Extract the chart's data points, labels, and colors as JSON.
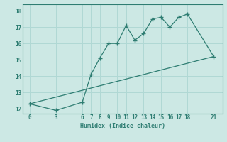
{
  "xlabel": "Humidex (Indice chaleur)",
  "bg_color": "#cce8e4",
  "grid_color": "#b0d8d4",
  "line_color": "#2e7d72",
  "xticks": [
    0,
    3,
    6,
    7,
    8,
    9,
    10,
    11,
    12,
    13,
    14,
    15,
    16,
    17,
    18,
    21
  ],
  "yticks": [
    12,
    13,
    14,
    15,
    16,
    17,
    18
  ],
  "ylim": [
    11.7,
    18.4
  ],
  "xlim": [
    -0.8,
    22.0
  ],
  "curve_x": [
    0,
    3,
    6,
    7,
    8,
    9,
    10,
    11,
    12,
    13,
    14,
    15,
    16,
    17,
    18,
    21
  ],
  "curve_y": [
    12.3,
    11.9,
    12.4,
    14.1,
    15.1,
    16.0,
    16.0,
    17.1,
    16.2,
    16.6,
    17.5,
    17.6,
    17.0,
    17.6,
    17.8,
    15.2
  ],
  "line_x": [
    0,
    21
  ],
  "line_y": [
    12.3,
    15.2
  ]
}
